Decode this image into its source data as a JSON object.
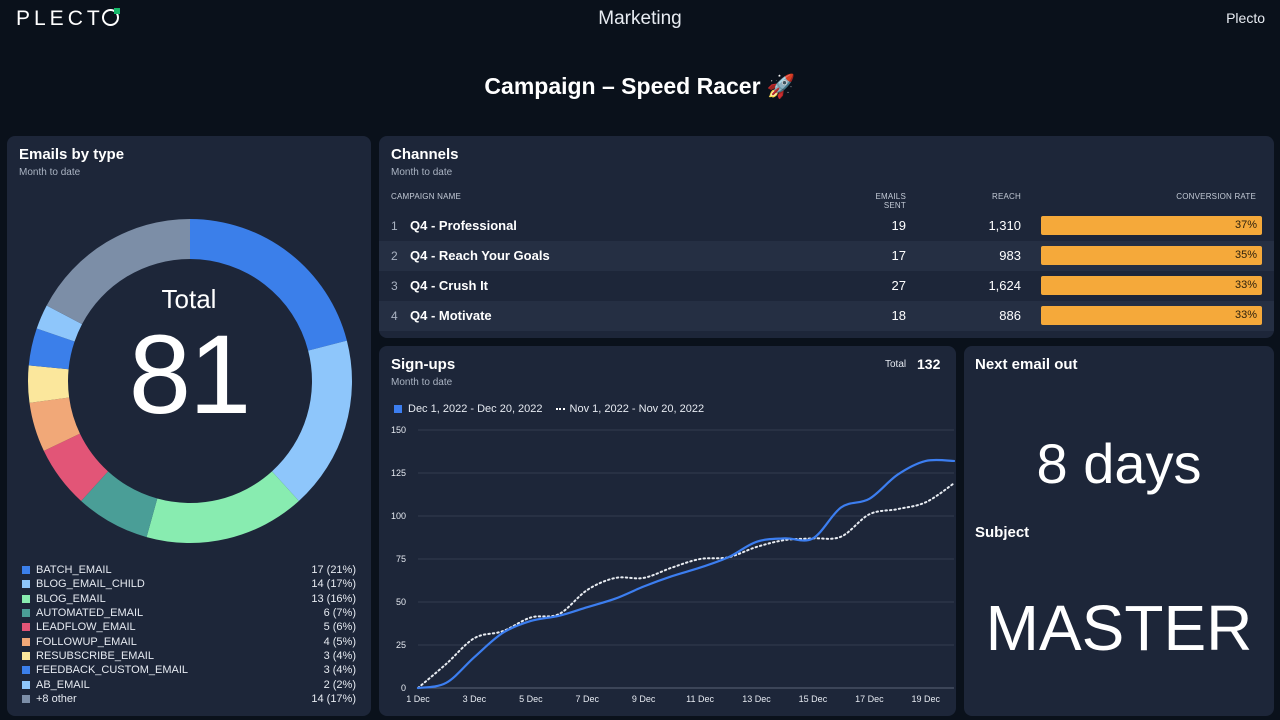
{
  "header": {
    "logo_text": "PLECTO",
    "page_name": "Marketing",
    "user_name": "Plecto"
  },
  "dashboard": {
    "title": "Campaign – Speed Racer 🚀"
  },
  "emails_by_type": {
    "title": "Emails by type",
    "subtitle": "Month to date",
    "total_label": "Total",
    "total_value": "81",
    "items": [
      {
        "name": "BATCH_EMAIL",
        "value": "17 (21%)",
        "count": 17,
        "color": "#3b7fea"
      },
      {
        "name": "BLOG_EMAIL_CHILD",
        "value": "14 (17%)",
        "count": 14,
        "color": "#8ec6fb"
      },
      {
        "name": "BLOG_EMAIL",
        "value": "13 (16%)",
        "count": 13,
        "color": "#88ecb0"
      },
      {
        "name": "AUTOMATED_EMAIL",
        "value": "6 (7%)",
        "count": 6,
        "color": "#4a9e97"
      },
      {
        "name": "LEADFLOW_EMAIL",
        "value": "5 (6%)",
        "count": 5,
        "color": "#e25577"
      },
      {
        "name": "FOLLOWUP_EMAIL",
        "value": "4 (5%)",
        "count": 4,
        "color": "#f1a878"
      },
      {
        "name": "RESUBSCRIBE_EMAIL",
        "value": "3 (4%)",
        "count": 3,
        "color": "#fbe79c"
      },
      {
        "name": "FEEDBACK_CUSTOM_EMAIL",
        "value": "3 (4%)",
        "count": 3,
        "color": "#3b7fea"
      },
      {
        "name": "AB_EMAIL",
        "value": "2 (2%)",
        "count": 2,
        "color": "#8ec6fb"
      },
      {
        "name": "+8 other",
        "value": "14 (17%)",
        "count": 14,
        "color": "#7c8ea7"
      }
    ]
  },
  "channels": {
    "title": "Channels",
    "subtitle": "Month to date",
    "columns": {
      "campaign": "CAMPAIGN NAME",
      "emails_sent": "EMAILS SENT",
      "reach": "REACH",
      "conversion": "CONVERSION RATE"
    },
    "rows": [
      {
        "index": "1",
        "name": "Q4 - Professional",
        "emails_sent": "19",
        "reach": "1,310",
        "conversion": "37%"
      },
      {
        "index": "2",
        "name": "Q4 - Reach Your Goals",
        "emails_sent": "17",
        "reach": "983",
        "conversion": "35%"
      },
      {
        "index": "3",
        "name": "Q4 - Crush It",
        "emails_sent": "27",
        "reach": "1,624",
        "conversion": "33%"
      },
      {
        "index": "4",
        "name": "Q4 - Motivate",
        "emails_sent": "18",
        "reach": "886",
        "conversion": "33%"
      }
    ]
  },
  "signups": {
    "title": "Sign-ups",
    "subtitle": "Month to date",
    "total_label": "Total",
    "total_value": "132",
    "legend_current": "Dec 1, 2022 - Dec 20, 2022",
    "legend_previous": "Nov 1, 2022 - Nov 20, 2022",
    "colors": {
      "current": "#3c7ef0",
      "previous": "#e8ecf2"
    }
  },
  "chart_data": {
    "type": "line",
    "x_ticks": [
      "1 Dec",
      "3 Dec",
      "5 Dec",
      "7 Dec",
      "9 Dec",
      "11 Dec",
      "13 Dec",
      "15 Dec",
      "17 Dec",
      "19 Dec"
    ],
    "y_ticks": [
      0,
      25,
      50,
      75,
      100,
      125,
      150
    ],
    "ylim": [
      0,
      150
    ],
    "x": [
      1,
      2,
      3,
      4,
      5,
      6,
      7,
      8,
      9,
      10,
      11,
      12,
      13,
      14,
      15,
      16,
      17,
      18,
      19,
      20
    ],
    "series": [
      {
        "name": "Dec 1, 2022 - Dec 20, 2022",
        "style": "solid",
        "values": [
          0,
          3,
          18,
          32,
          39,
          42,
          47,
          52,
          59,
          65,
          70,
          76,
          85,
          87,
          87,
          105,
          110,
          124,
          132,
          132
        ]
      },
      {
        "name": "Nov 1, 2022 - Nov 20, 2022",
        "style": "dotted",
        "values": [
          0,
          14,
          29,
          33,
          41,
          43,
          57,
          64,
          64,
          70,
          75,
          76,
          82,
          86,
          87,
          88,
          101,
          104,
          108,
          119
        ]
      }
    ],
    "grid": true,
    "legend": "top-left"
  },
  "next_email": {
    "title": "Next email out",
    "value": "8 days",
    "subject_label": "Subject",
    "subject_value": "MASTER"
  }
}
